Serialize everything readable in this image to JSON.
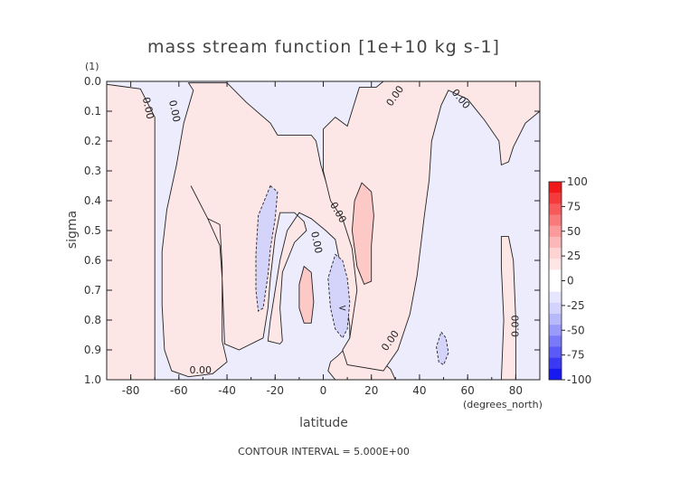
{
  "chart_data": {
    "type": "contour",
    "title": "mass stream function [1e+10 kg s-1]",
    "xlabel": "latitude",
    "ylabel": "sigma",
    "x_units": "(degrees_north)",
    "y_units": "(1)",
    "xlim": [
      -90,
      90
    ],
    "ylim": [
      1.0,
      0.0
    ],
    "x_ticks": [
      -80,
      -60,
      -40,
      -20,
      0,
      20,
      40,
      60,
      80
    ],
    "y_ticks": [
      0.0,
      0.1,
      0.2,
      0.3,
      0.4,
      0.5,
      0.6,
      0.7,
      0.8,
      0.9,
      1.0
    ],
    "contour_interval": 5.0,
    "colorbar": {
      "ticks": [
        100,
        75,
        50,
        25,
        0,
        -25,
        -50,
        -75,
        -100
      ],
      "colors": [
        "#f01818",
        "#f43a3a",
        "#f75a5a",
        "#f97a7a",
        "#fb9a9a",
        "#fcb8b8",
        "#fdd3d3",
        "#fee6e6",
        "#ffffff",
        "#ffffff",
        "#e6e6fe",
        "#d3d3fd",
        "#b8b8fc",
        "#9a9afb",
        "#7a7af9",
        "#5a5af7",
        "#3a3af4",
        "#1818f0"
      ]
    },
    "regions": [
      {
        "sign": "positive",
        "level": 0,
        "points": [
          [
            -90,
            0.01
          ],
          [
            -76,
            0.025
          ],
          [
            -70,
            0.12
          ],
          [
            -70,
            1.0
          ],
          [
            -90,
            1.0
          ]
        ]
      },
      {
        "sign": "positive",
        "level": 0,
        "points": [
          [
            -55,
            0.35
          ],
          [
            -48,
            0.46
          ],
          [
            -43,
            0.48
          ],
          [
            -42,
            0.62
          ],
          [
            -42,
            0.87
          ],
          [
            -40,
            0.94
          ],
          [
            -46,
            0.98
          ],
          [
            -56,
            0.99
          ],
          [
            -63,
            0.97
          ],
          [
            -66,
            0.9
          ],
          [
            -67,
            0.75
          ],
          [
            -67,
            0.57
          ],
          [
            -65,
            0.43
          ],
          [
            -61,
            0.28
          ],
          [
            -58,
            0.14
          ],
          [
            -54,
            0.03
          ],
          [
            -56,
            0.005
          ],
          [
            -40,
            0.005
          ],
          [
            -32,
            0.07
          ],
          [
            -22,
            0.14
          ],
          [
            -19,
            0.18
          ],
          [
            -15,
            0.18
          ],
          [
            -5,
            0.18
          ],
          [
            -3,
            0.2
          ],
          [
            -1,
            0.28
          ],
          [
            2,
            0.36
          ],
          [
            8,
            0.43
          ],
          [
            12,
            0.53
          ],
          [
            15,
            0.65
          ],
          [
            17,
            0.85
          ],
          [
            23,
            0.93
          ],
          [
            28,
            0.965
          ],
          [
            30,
            1.0
          ],
          [
            5,
            1.0
          ],
          [
            2,
            0.97
          ],
          [
            3,
            0.94
          ],
          [
            6,
            0.92
          ],
          [
            11,
            0.88
          ],
          [
            11,
            0.82
          ],
          [
            8,
            0.65
          ],
          [
            5,
            0.53
          ],
          [
            1,
            0.5
          ],
          [
            -5,
            0.46
          ],
          [
            -10,
            0.44
          ],
          [
            -15,
            0.5
          ],
          [
            -18,
            0.6
          ],
          [
            -20,
            0.7
          ],
          [
            -22,
            0.8
          ],
          [
            -23,
            0.87
          ],
          [
            -18,
            0.88
          ],
          [
            -17,
            0.87
          ],
          [
            -18,
            0.76
          ],
          [
            -17,
            0.64
          ],
          [
            -12,
            0.54
          ],
          [
            -7,
            0.5
          ],
          [
            -8,
            0.47
          ],
          [
            -12,
            0.44
          ],
          [
            -18,
            0.44
          ],
          [
            -20,
            0.52
          ],
          [
            -22,
            0.66
          ],
          [
            -23,
            0.76
          ],
          [
            -25,
            0.86
          ],
          [
            -35,
            0.9
          ],
          [
            -41,
            0.88
          ],
          [
            -42,
            0.66
          ],
          [
            -43,
            0.55
          ],
          [
            -48,
            0.46
          ]
        ]
      },
      {
        "sign": "positive",
        "level": 0,
        "points": [
          [
            0,
            0.16
          ],
          [
            5,
            0.12
          ],
          [
            10,
            0.15
          ],
          [
            15,
            0.02
          ],
          [
            22,
            0.02
          ],
          [
            25,
            0.0
          ],
          [
            90,
            0.0
          ],
          [
            90,
            0.1
          ],
          [
            84,
            0.14
          ],
          [
            79,
            0.22
          ],
          [
            77,
            0.27
          ],
          [
            74,
            0.28
          ],
          [
            73,
            0.2
          ],
          [
            67,
            0.13
          ],
          [
            60,
            0.06
          ],
          [
            52,
            0.03
          ],
          [
            49,
            0.08
          ],
          [
            45,
            0.2
          ],
          [
            44,
            0.33
          ],
          [
            42,
            0.45
          ],
          [
            39,
            0.65
          ],
          [
            36,
            0.78
          ],
          [
            31,
            0.9
          ],
          [
            25,
            0.97
          ],
          [
            10,
            0.95
          ],
          [
            8,
            0.9
          ],
          [
            11,
            0.86
          ],
          [
            14,
            0.7
          ],
          [
            12,
            0.56
          ],
          [
            8,
            0.46
          ],
          [
            3,
            0.4
          ],
          [
            0,
            0.3
          ]
        ]
      },
      {
        "sign": "positive",
        "level": 5,
        "points": [
          [
            -8,
            0.62
          ],
          [
            -5,
            0.64
          ],
          [
            -4,
            0.74
          ],
          [
            -5,
            0.81
          ],
          [
            -8,
            0.81
          ],
          [
            -10,
            0.76
          ],
          [
            -10,
            0.68
          ]
        ]
      },
      {
        "sign": "positive",
        "level": 5,
        "points": [
          [
            16,
            0.34
          ],
          [
            20,
            0.37
          ],
          [
            21,
            0.45
          ],
          [
            20,
            0.55
          ],
          [
            20,
            0.67
          ],
          [
            17,
            0.68
          ],
          [
            14,
            0.62
          ],
          [
            12,
            0.5
          ],
          [
            13,
            0.4
          ]
        ]
      },
      {
        "sign": "positive",
        "level": 0,
        "points": [
          [
            74,
            0.52
          ],
          [
            77,
            0.52
          ],
          [
            79,
            0.6
          ],
          [
            80,
            0.8
          ],
          [
            80,
            1.0
          ],
          [
            74,
            1.0
          ],
          [
            75,
            0.8
          ],
          [
            74,
            0.62
          ]
        ]
      },
      {
        "sign": "negative",
        "level": -5,
        "points": [
          [
            -22,
            0.35
          ],
          [
            -19,
            0.37
          ],
          [
            -20,
            0.46
          ],
          [
            -22,
            0.56
          ],
          [
            -23,
            0.65
          ],
          [
            -25,
            0.76
          ],
          [
            -27,
            0.77
          ],
          [
            -28,
            0.7
          ],
          [
            -28,
            0.58
          ],
          [
            -27,
            0.45
          ]
        ]
      },
      {
        "sign": "negative",
        "level": -5,
        "points": [
          [
            5,
            0.58
          ],
          [
            8,
            0.6
          ],
          [
            10,
            0.66
          ],
          [
            11,
            0.74
          ],
          [
            10,
            0.83
          ],
          [
            8,
            0.86
          ],
          [
            5,
            0.83
          ],
          [
            3,
            0.76
          ],
          [
            2,
            0.66
          ]
        ]
      },
      {
        "sign": "negative",
        "level": -5,
        "points": [
          [
            49,
            0.84
          ],
          [
            51,
            0.86
          ],
          [
            52,
            0.91
          ],
          [
            50,
            0.95
          ],
          [
            48,
            0.94
          ],
          [
            47,
            0.89
          ]
        ]
      }
    ],
    "contour_labels": [
      {
        "text": "0.00",
        "x": -73,
        "y": 0.09,
        "rotate": 78
      },
      {
        "text": "0.00",
        "x": -62,
        "y": 0.1,
        "rotate": 78
      },
      {
        "text": "0.00",
        "x": -51,
        "y": 0.97,
        "rotate": 0
      },
      {
        "text": "0.00",
        "x": 6,
        "y": 0.44,
        "rotate": 60
      },
      {
        "text": "0.00",
        "x": -3,
        "y": 0.54,
        "rotate": 78
      },
      {
        "text": "0.00",
        "x": 30,
        "y": 0.05,
        "rotate": -55
      },
      {
        "text": "0.00",
        "x": 57,
        "y": 0.06,
        "rotate": 50
      },
      {
        "text": "0.00",
        "x": 28,
        "y": 0.87,
        "rotate": -55
      },
      {
        "text": "0.00",
        "x": 80,
        "y": 0.82,
        "rotate": -90
      },
      {
        "text": "<",
        "x": 8,
        "y": 0.76,
        "rotate": 0
      }
    ]
  },
  "footer": {
    "contour_interval_text": "CONTOUR INTERVAL = 5.000E+00"
  }
}
